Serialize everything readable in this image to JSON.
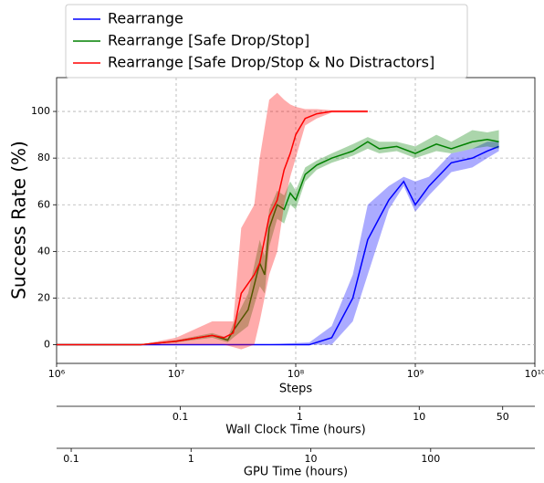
{
  "chart_data": {
    "type": "line",
    "xlabel": "Steps",
    "ylabel": "Success Rate (%)",
    "xscale": "log",
    "xlim": [
      1000000,
      10000000000
    ],
    "xticks": [
      {
        "value": 1000000,
        "label": "10⁶"
      },
      {
        "value": 10000000,
        "label": "10⁷"
      },
      {
        "value": 100000000,
        "label": "10⁸"
      },
      {
        "value": 1000000000,
        "label": "10⁹"
      },
      {
        "value": 10000000000,
        "label": "10¹⁰"
      }
    ],
    "ylim": [
      -8,
      114.5
    ],
    "yticks": [
      0,
      20,
      40,
      60,
      80,
      100
    ],
    "grid": true,
    "legend": "upper left",
    "series": [
      {
        "name": "Rearrange",
        "color": "#0000ff",
        "x": [
          1000000,
          10000000,
          50000000,
          130000000,
          200000000,
          300000000,
          400000000,
          600000000,
          800000000,
          1000000000,
          1300000000,
          2000000000,
          3000000000,
          4000000000,
          5000000000
        ],
        "values": [
          0,
          0,
          0,
          0,
          3,
          20,
          45,
          62,
          70,
          60,
          68,
          78,
          80,
          83,
          85
        ],
        "lower": [
          0,
          0,
          0,
          0,
          0,
          10,
          30,
          58,
          68,
          57,
          64,
          74,
          76,
          80,
          83
        ],
        "upper": [
          0,
          0,
          0,
          1,
          8,
          30,
          60,
          68,
          72,
          70,
          72,
          82,
          84,
          87,
          87
        ]
      },
      {
        "name": "Rearrange [Safe Drop/Stop]",
        "color": "#008000",
        "x": [
          1000000,
          5000000,
          10000000,
          20000000,
          27000000,
          30000000,
          40000000,
          50000000,
          55000000,
          60000000,
          70000000,
          80000000,
          90000000,
          100000000,
          120000000,
          150000000,
          200000000,
          300000000,
          400000000,
          500000000,
          700000000,
          1000000000,
          1500000000,
          2000000000,
          3000000000,
          4000000000,
          5000000000
        ],
        "values": [
          0,
          0,
          1.5,
          4,
          2,
          6,
          15,
          35,
          30,
          50,
          60,
          58,
          65,
          62,
          73,
          77,
          80,
          83,
          87,
          84,
          85,
          82,
          86,
          84,
          87,
          88,
          87
        ],
        "lower": [
          0,
          0,
          1,
          3,
          1,
          3,
          8,
          25,
          22,
          42,
          54,
          52,
          60,
          58,
          70,
          75,
          78,
          81,
          84,
          82,
          83,
          80,
          83,
          82,
          84,
          85,
          84
        ],
        "upper": [
          0,
          0,
          2,
          5,
          3,
          9,
          22,
          45,
          38,
          58,
          66,
          64,
          70,
          66,
          76,
          79,
          82,
          86,
          89,
          87,
          87,
          85,
          90,
          87,
          92,
          91,
          92
        ]
      },
      {
        "name": "Rearrange [Safe Drop/Stop & No Distractors]",
        "color": "#ff0000",
        "x": [
          1000000,
          5000000,
          10000000,
          20000000,
          25000000,
          30000000,
          35000000,
          45000000,
          50000000,
          60000000,
          70000000,
          80000000,
          90000000,
          100000000,
          120000000,
          150000000,
          200000000,
          400000000
        ],
        "values": [
          0,
          0,
          1.5,
          4,
          3,
          5,
          22,
          30,
          35,
          55,
          62,
          75,
          82,
          90,
          97,
          99,
          100,
          100
        ],
        "lower": [
          0,
          0,
          0,
          0,
          0,
          -1,
          -2,
          0,
          10,
          30,
          40,
          60,
          72,
          80,
          94,
          97,
          99.5,
          99.5
        ],
        "upper": [
          0,
          0,
          3,
          10,
          10,
          10,
          50,
          60,
          80,
          105,
          108,
          105,
          103,
          102,
          101,
          101,
          100.5,
          100.5
        ]
      }
    ],
    "secondary_axes": [
      {
        "label": "Wall Clock Time (hours)",
        "xlim": [
          0.0092,
          93
        ],
        "xticks": [
          0.1,
          1,
          10,
          50
        ]
      },
      {
        "label": "GPU Time (hours)",
        "xlim": [
          0.0755,
          741
        ],
        "xticks": [
          0.1,
          1,
          10,
          100
        ]
      }
    ]
  }
}
